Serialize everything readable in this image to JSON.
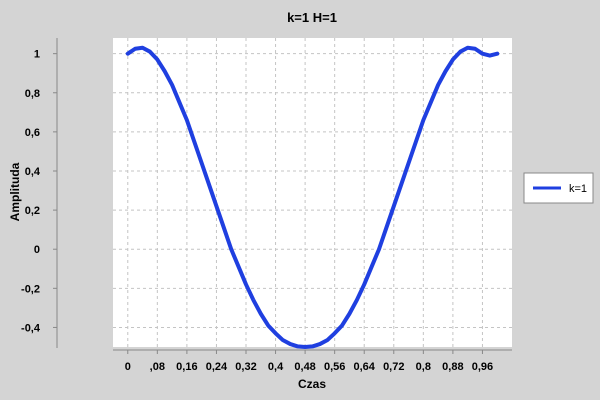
{
  "chart_data": {
    "type": "line",
    "title": "k=1 H=1",
    "xlabel": "Czas",
    "ylabel": "Amplituda",
    "xlim": [
      -0.04,
      1.04
    ],
    "ylim": [
      -0.5,
      1.08
    ],
    "grid": true,
    "legend_position": "right",
    "x_ticks": [
      0,
      0.08,
      0.16,
      0.24,
      0.32,
      0.4,
      0.48,
      0.56,
      0.64,
      0.72,
      0.8,
      0.88,
      0.96
    ],
    "x_tick_labels": [
      "0",
      ",08",
      "0,16",
      "0,24",
      "0,32",
      "0,4",
      "0,48",
      "0,56",
      "0,64",
      "0,72",
      "0,8",
      "0,88",
      "0,96"
    ],
    "y_ticks": [
      1,
      0.8,
      0.6,
      0.4,
      0.2,
      0,
      -0.2,
      -0.4
    ],
    "y_tick_labels": [
      "1",
      "0,8",
      "0,6",
      "0,4",
      "0,2",
      "0",
      "-0,2",
      "-0,4"
    ],
    "series": [
      {
        "name": "k=1",
        "color": "#1f3fe0",
        "x": [
          0,
          0.02,
          0.04,
          0.06,
          0.08,
          0.1,
          0.12,
          0.14,
          0.16,
          0.18,
          0.2,
          0.22,
          0.24,
          0.26,
          0.28,
          0.3,
          0.32,
          0.34,
          0.36,
          0.38,
          0.4,
          0.42,
          0.44,
          0.46,
          0.48,
          0.5,
          0.52,
          0.54,
          0.56,
          0.58,
          0.6,
          0.62,
          0.64,
          0.66,
          0.68,
          0.7,
          0.72,
          0.74,
          0.76,
          0.78,
          0.8,
          0.82,
          0.84,
          0.86,
          0.88,
          0.9,
          0.92,
          0.94,
          0.96,
          0.98,
          1.0
        ],
        "y": [
          1.0,
          1.025,
          1.03,
          1.01,
          0.97,
          0.91,
          0.84,
          0.75,
          0.66,
          0.55,
          0.44,
          0.33,
          0.22,
          0.11,
          0.0,
          -0.09,
          -0.18,
          -0.26,
          -0.33,
          -0.39,
          -0.43,
          -0.465,
          -0.485,
          -0.497,
          -0.5,
          -0.497,
          -0.485,
          -0.465,
          -0.43,
          -0.39,
          -0.33,
          -0.26,
          -0.18,
          -0.09,
          0.0,
          0.11,
          0.22,
          0.33,
          0.44,
          0.55,
          0.66,
          0.75,
          0.84,
          0.91,
          0.97,
          1.01,
          1.03,
          1.025,
          1.0,
          0.99,
          1.0
        ]
      }
    ]
  },
  "colors": {
    "background": "#d4d4d4",
    "plot_background": "#ffffff",
    "grid": "#c4c4c4",
    "line": "#1f3fe0"
  }
}
